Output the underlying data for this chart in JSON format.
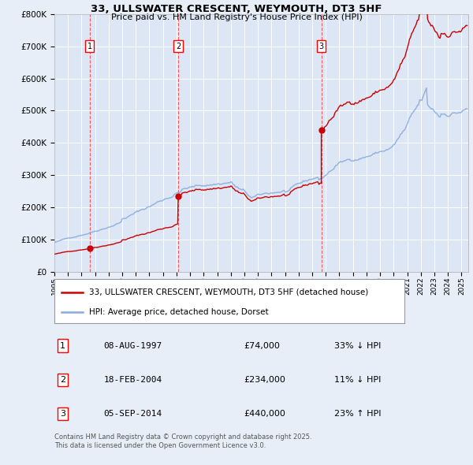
{
  "title": "33, ULLSWATER CRESCENT, WEYMOUTH, DT3 5HF",
  "subtitle": "Price paid vs. HM Land Registry's House Price Index (HPI)",
  "ylim": [
    0,
    800000
  ],
  "xlim_start": 1995,
  "xlim_end": 2025.5,
  "bg_color": "#e8eef8",
  "plot_bg_color": "#dce6f5",
  "grid_color": "#ffffff",
  "sale_color": "#cc0000",
  "hpi_color": "#88aadd",
  "sale_line_label": "33, ULLSWATER CRESCENT, WEYMOUTH, DT3 5HF (detached house)",
  "hpi_line_label": "HPI: Average price, detached house, Dorset",
  "transactions": [
    {
      "num": 1,
      "date": "08-AUG-1997",
      "price": 74000,
      "year": 1997.6,
      "pct": "33%",
      "dir": "↓"
    },
    {
      "num": 2,
      "date": "18-FEB-2004",
      "price": 234000,
      "year": 2004.12,
      "pct": "11%",
      "dir": "↓"
    },
    {
      "num": 3,
      "date": "05-SEP-2014",
      "price": 440000,
      "year": 2014.67,
      "pct": "23%",
      "dir": "↑"
    }
  ],
  "footer_line1": "Contains HM Land Registry data © Crown copyright and database right 2025.",
  "footer_line2": "This data is licensed under the Open Government Licence v3.0."
}
